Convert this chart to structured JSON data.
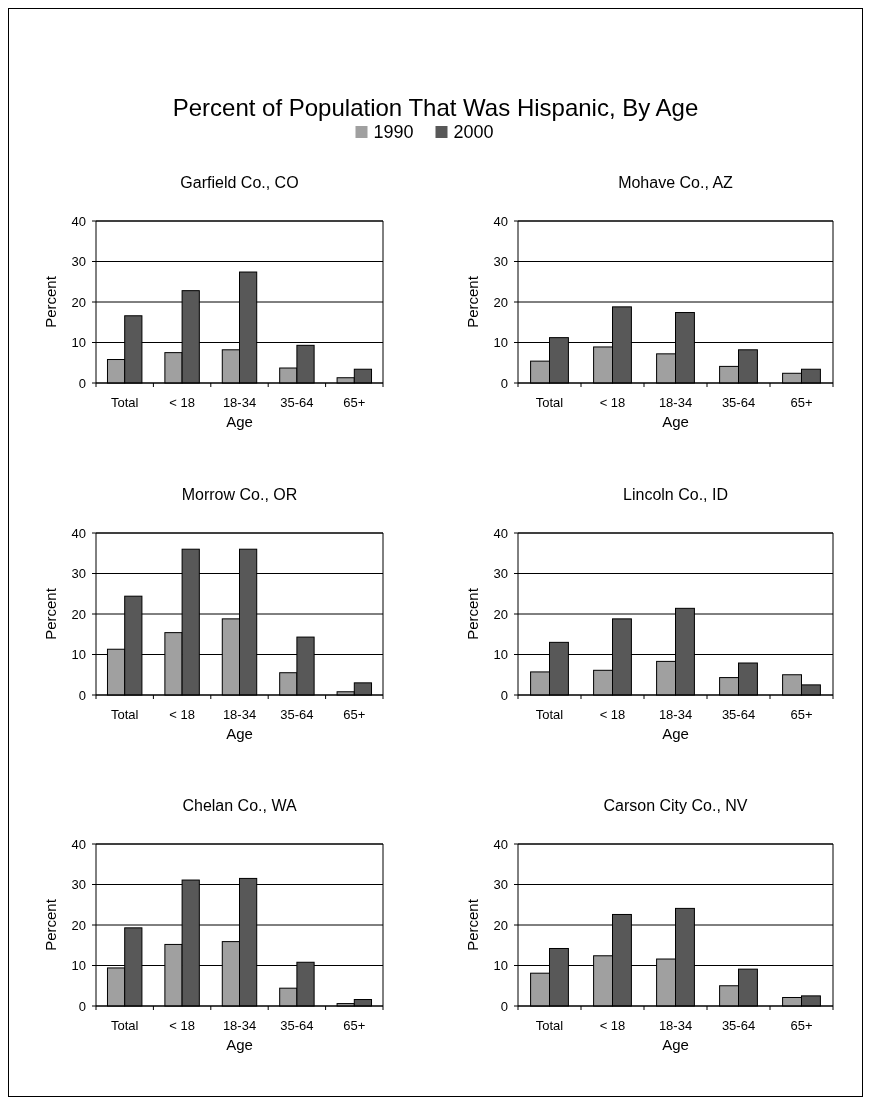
{
  "chart_data": [
    {
      "type": "other",
      "title": "Percent of Population That Was Hispanic, By Age"
    },
    {
      "type": "bar",
      "title": "Garfield Co., CO",
      "xlabel": "Age",
      "ylabel": "Percent",
      "categories": [
        "Total",
        "< 18",
        "18-34",
        "35-64",
        "65+"
      ],
      "ylim": [
        0,
        40
      ],
      "yticks": [
        0,
        10,
        20,
        30,
        40
      ],
      "grid": "y",
      "legend": "top",
      "series": [
        {
          "name": "1990",
          "color": "#a0a0a0",
          "values": [
            5.8,
            7.5,
            8.2,
            3.7,
            1.3
          ]
        },
        {
          "name": "2000",
          "color": "#585858",
          "values": [
            16.6,
            22.8,
            27.4,
            9.3,
            3.4
          ]
        }
      ]
    },
    {
      "type": "bar",
      "title": "Mohave Co., AZ",
      "xlabel": "Age",
      "ylabel": "Percent",
      "categories": [
        "Total",
        "< 18",
        "18-34",
        "35-64",
        "65+"
      ],
      "ylim": [
        0,
        40
      ],
      "yticks": [
        0,
        10,
        20,
        30,
        40
      ],
      "grid": "y",
      "series": [
        {
          "color": "#a0a0a0",
          "values": [
            5.4,
            8.9,
            7.2,
            4.1,
            2.4
          ]
        },
        {
          "color": "#585858",
          "values": [
            11.2,
            18.8,
            17.4,
            8.2,
            3.4
          ]
        }
      ]
    },
    {
      "type": "bar",
      "title": "Morrow Co., OR",
      "xlabel": "Age",
      "ylabel": "Percent",
      "categories": [
        "Total",
        "< 18",
        "18-34",
        "35-64",
        "65+"
      ],
      "ylim": [
        0,
        40
      ],
      "yticks": [
        0,
        10,
        20,
        30,
        40
      ],
      "grid": "y",
      "series": [
        {
          "color": "#a0a0a0",
          "values": [
            11.3,
            15.4,
            18.8,
            5.5,
            0.8
          ]
        },
        {
          "color": "#585858",
          "values": [
            24.4,
            36.0,
            36.0,
            14.3,
            3.0
          ]
        }
      ]
    },
    {
      "type": "bar",
      "title": "Lincoln Co., ID",
      "xlabel": "Age",
      "ylabel": "Percent",
      "categories": [
        "Total",
        "< 18",
        "18-34",
        "35-64",
        "65+"
      ],
      "ylim": [
        0,
        40
      ],
      "yticks": [
        0,
        10,
        20,
        30,
        40
      ],
      "grid": "y",
      "series": [
        {
          "color": "#a0a0a0",
          "values": [
            5.7,
            6.1,
            8.3,
            4.3,
            5.0
          ]
        },
        {
          "color": "#585858",
          "values": [
            13.0,
            18.8,
            21.4,
            7.9,
            2.5
          ]
        }
      ]
    },
    {
      "type": "bar",
      "title": "Chelan Co., WA",
      "xlabel": "Age",
      "ylabel": "Percent",
      "categories": [
        "Total",
        "< 18",
        "18-34",
        "35-64",
        "65+"
      ],
      "ylim": [
        0,
        40
      ],
      "yticks": [
        0,
        10,
        20,
        30,
        40
      ],
      "grid": "y",
      "series": [
        {
          "color": "#a0a0a0",
          "values": [
            9.4,
            15.2,
            15.9,
            4.4,
            0.6
          ]
        },
        {
          "color": "#585858",
          "values": [
            19.3,
            31.1,
            31.5,
            10.8,
            1.6
          ]
        }
      ]
    },
    {
      "type": "bar",
      "title": "Carson City Co., NV",
      "xlabel": "Age",
      "ylabel": "Percent",
      "categories": [
        "Total",
        "< 18",
        "18-34",
        "35-64",
        "65+"
      ],
      "ylim": [
        0,
        40
      ],
      "yticks": [
        0,
        10,
        20,
        30,
        40
      ],
      "grid": "y",
      "series": [
        {
          "color": "#a0a0a0",
          "values": [
            8.1,
            12.4,
            11.6,
            5.0,
            2.1
          ]
        },
        {
          "color": "#585858",
          "values": [
            14.2,
            22.6,
            24.1,
            9.1,
            2.5
          ]
        }
      ]
    }
  ]
}
